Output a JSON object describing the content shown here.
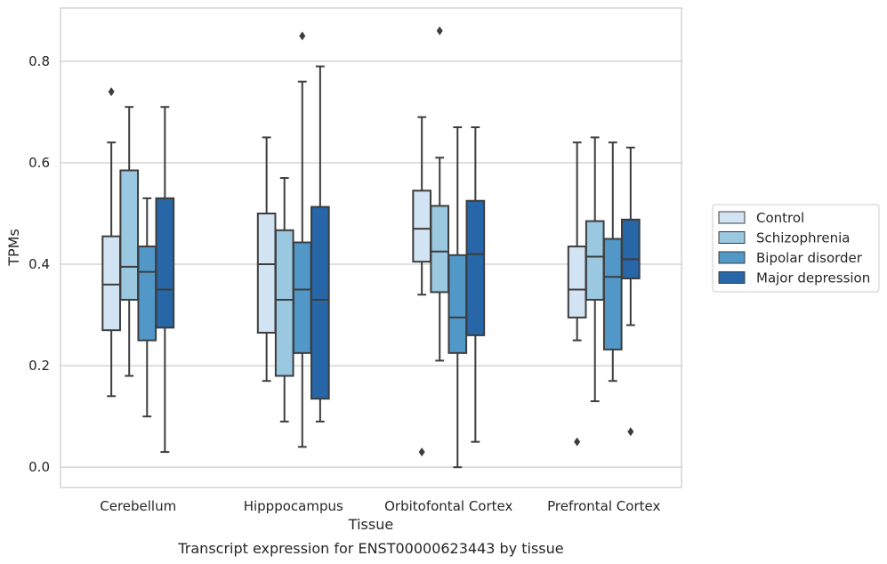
{
  "chart_data": {
    "type": "boxplot",
    "title": "",
    "caption": "Transcript expression for ENST00000623443 by tissue",
    "xlabel": "Tissue",
    "ylabel": "TPMs",
    "ylim": [
      -0.04,
      0.905
    ],
    "yticks": [
      0.0,
      0.2,
      0.4,
      0.6,
      0.8
    ],
    "ytick_labels": [
      "0.0",
      "0.2",
      "0.4",
      "0.6",
      "0.8"
    ],
    "grid": "horizontal",
    "legend_position": "right",
    "categories": [
      "Cerebellum",
      "Hipppocampus",
      "Orbitofontal Cortex",
      "Prefrontal Cortex"
    ],
    "series": [
      {
        "name": "Control",
        "color": "#d2e3f3",
        "boxes": [
          {
            "whisker_low": 0.14,
            "q1": 0.27,
            "median": 0.36,
            "q3": 0.455,
            "whisker_high": 0.64,
            "outliers": [
              0.74
            ]
          },
          {
            "whisker_low": 0.17,
            "q1": 0.265,
            "median": 0.4,
            "q3": 0.5,
            "whisker_high": 0.65,
            "outliers": []
          },
          {
            "whisker_low": 0.34,
            "q1": 0.405,
            "median": 0.47,
            "q3": 0.545,
            "whisker_high": 0.69,
            "outliers": [
              0.03
            ]
          },
          {
            "whisker_low": 0.25,
            "q1": 0.295,
            "median": 0.35,
            "q3": 0.435,
            "whisker_high": 0.64,
            "outliers": [
              0.05
            ]
          }
        ]
      },
      {
        "name": "Schizophrenia",
        "color": "#9ac8e0",
        "boxes": [
          {
            "whisker_low": 0.18,
            "q1": 0.33,
            "median": 0.395,
            "q3": 0.585,
            "whisker_high": 0.71,
            "outliers": []
          },
          {
            "whisker_low": 0.09,
            "q1": 0.18,
            "median": 0.33,
            "q3": 0.467,
            "whisker_high": 0.57,
            "outliers": []
          },
          {
            "whisker_low": 0.21,
            "q1": 0.345,
            "median": 0.425,
            "q3": 0.515,
            "whisker_high": 0.61,
            "outliers": [
              0.86
            ]
          },
          {
            "whisker_low": 0.13,
            "q1": 0.33,
            "median": 0.415,
            "q3": 0.485,
            "whisker_high": 0.65,
            "outliers": []
          }
        ]
      },
      {
        "name": "Bipolar disorder",
        "color": "#5198c8",
        "boxes": [
          {
            "whisker_low": 0.1,
            "q1": 0.25,
            "median": 0.385,
            "q3": 0.435,
            "whisker_high": 0.53,
            "outliers": []
          },
          {
            "whisker_low": 0.04,
            "q1": 0.225,
            "median": 0.35,
            "q3": 0.443,
            "whisker_high": 0.76,
            "outliers": [
              0.85
            ]
          },
          {
            "whisker_low": 0.0,
            "q1": 0.225,
            "median": 0.295,
            "q3": 0.418,
            "whisker_high": 0.67,
            "outliers": []
          },
          {
            "whisker_low": 0.17,
            "q1": 0.232,
            "median": 0.375,
            "q3": 0.45,
            "whisker_high": 0.64,
            "outliers": []
          }
        ]
      },
      {
        "name": "Major depression",
        "color": "#2766a7",
        "boxes": [
          {
            "whisker_low": 0.03,
            "q1": 0.275,
            "median": 0.35,
            "q3": 0.53,
            "whisker_high": 0.71,
            "outliers": []
          },
          {
            "whisker_low": 0.09,
            "q1": 0.135,
            "median": 0.33,
            "q3": 0.513,
            "whisker_high": 0.79,
            "outliers": []
          },
          {
            "whisker_low": 0.05,
            "q1": 0.26,
            "median": 0.42,
            "q3": 0.525,
            "whisker_high": 0.67,
            "outliers": []
          },
          {
            "whisker_low": 0.28,
            "q1": 0.372,
            "median": 0.41,
            "q3": 0.488,
            "whisker_high": 0.63,
            "outliers": [
              0.07
            ]
          }
        ]
      }
    ]
  }
}
